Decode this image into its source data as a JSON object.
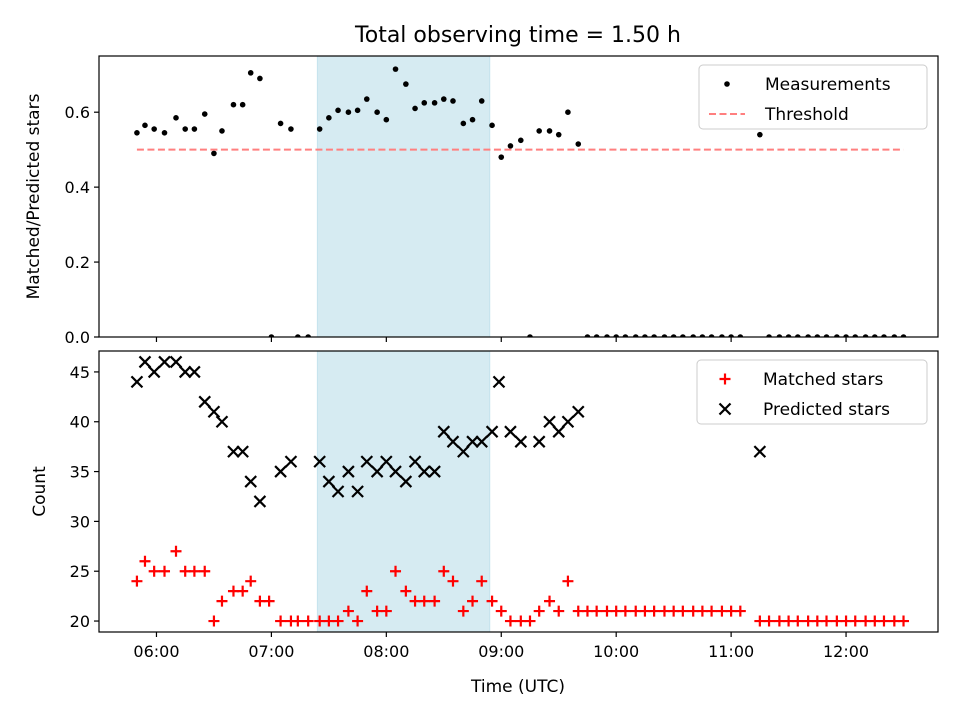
{
  "figure": {
    "title": "Total observing time = 1.50 h",
    "xlabel": "Time (UTC)",
    "x_ticks": [
      "06:00",
      "07:00",
      "08:00",
      "09:00",
      "10:00",
      "11:00",
      "12:00"
    ],
    "x_tick_hours": [
      6,
      7,
      8,
      9,
      10,
      11,
      12
    ],
    "x_range": [
      5.5,
      12.8
    ],
    "highlight_band": {
      "start": 7.4,
      "end": 8.9,
      "color": "#add8e6"
    }
  },
  "chart_data": [
    {
      "type": "scatter",
      "panel": "ratio",
      "ylabel": "Matched/Predicted stars",
      "ylim": [
        0,
        0.75
      ],
      "y_ticks": [
        0.0,
        0.2,
        0.4,
        0.6
      ],
      "y_tick_labels": [
        "0.0",
        "0.2",
        "0.4",
        "0.6"
      ],
      "legend": {
        "placement": "upper-right",
        "entries": [
          "Measurements",
          "Threshold"
        ]
      },
      "series": [
        {
          "name": "Measurements",
          "marker": "dot",
          "color": "#000000",
          "points": [
            [
              5.83,
              0.545
            ],
            [
              5.9,
              0.565
            ],
            [
              5.98,
              0.555
            ],
            [
              6.07,
              0.545
            ],
            [
              6.17,
              0.585
            ],
            [
              6.25,
              0.555
            ],
            [
              6.33,
              0.555
            ],
            [
              6.42,
              0.595
            ],
            [
              6.5,
              0.49
            ],
            [
              6.57,
              0.55
            ],
            [
              6.67,
              0.62
            ],
            [
              6.75,
              0.62
            ],
            [
              6.82,
              0.705
            ],
            [
              6.9,
              0.69
            ],
            [
              7.0,
              0.0
            ],
            [
              7.08,
              0.57
            ],
            [
              7.17,
              0.555
            ],
            [
              7.23,
              0.0
            ],
            [
              7.32,
              0.0
            ],
            [
              7.42,
              0.555
            ],
            [
              7.5,
              0.585
            ],
            [
              7.58,
              0.605
            ],
            [
              7.67,
              0.6
            ],
            [
              7.75,
              0.605
            ],
            [
              7.83,
              0.635
            ],
            [
              7.92,
              0.6
            ],
            [
              8.0,
              0.58
            ],
            [
              8.08,
              0.715
            ],
            [
              8.17,
              0.675
            ],
            [
              8.25,
              0.61
            ],
            [
              8.33,
              0.625
            ],
            [
              8.42,
              0.625
            ],
            [
              8.5,
              0.635
            ],
            [
              8.58,
              0.63
            ],
            [
              8.67,
              0.57
            ],
            [
              8.75,
              0.58
            ],
            [
              8.83,
              0.63
            ],
            [
              8.92,
              0.565
            ],
            [
              9.0,
              0.48
            ],
            [
              9.08,
              0.51
            ],
            [
              9.17,
              0.525
            ],
            [
              9.25,
              0.0
            ],
            [
              9.33,
              0.55
            ],
            [
              9.42,
              0.55
            ],
            [
              9.5,
              0.54
            ],
            [
              9.58,
              0.6
            ],
            [
              9.67,
              0.515
            ],
            [
              9.75,
              0.0
            ],
            [
              9.83,
              0.0
            ],
            [
              9.92,
              0.0
            ],
            [
              10.0,
              0.0
            ],
            [
              10.08,
              0.0
            ],
            [
              10.17,
              0.0
            ],
            [
              10.25,
              0.0
            ],
            [
              10.33,
              0.0
            ],
            [
              10.42,
              0.0
            ],
            [
              10.5,
              0.0
            ],
            [
              10.58,
              0.0
            ],
            [
              10.67,
              0.0
            ],
            [
              10.75,
              0.0
            ],
            [
              10.83,
              0.0
            ],
            [
              10.92,
              0.0
            ],
            [
              11.0,
              0.0
            ],
            [
              11.08,
              0.0
            ],
            [
              11.25,
              0.54
            ],
            [
              11.33,
              0.0
            ],
            [
              11.42,
              0.0
            ],
            [
              11.5,
              0.0
            ],
            [
              11.58,
              0.0
            ],
            [
              11.67,
              0.0
            ],
            [
              11.75,
              0.0
            ],
            [
              11.83,
              0.0
            ],
            [
              11.92,
              0.0
            ],
            [
              12.0,
              0.0
            ],
            [
              12.08,
              0.0
            ],
            [
              12.17,
              0.0
            ],
            [
              12.25,
              0.0
            ],
            [
              12.33,
              0.0
            ],
            [
              12.42,
              0.0
            ],
            [
              12.5,
              0.0
            ]
          ]
        },
        {
          "name": "Threshold",
          "type": "line",
          "style": "dashed",
          "color": "#ff7f7f",
          "x": [
            5.83,
            12.5
          ],
          "y": [
            0.5,
            0.5
          ]
        }
      ]
    },
    {
      "type": "scatter",
      "panel": "counts",
      "ylabel": "Count",
      "ylim": [
        18.9,
        47.1
      ],
      "y_ticks": [
        20,
        25,
        30,
        35,
        40,
        45
      ],
      "y_tick_labels": [
        "20",
        "25",
        "30",
        "35",
        "40",
        "45"
      ],
      "legend": {
        "placement": "upper-right",
        "entries": [
          "Matched stars",
          "Predicted stars"
        ]
      },
      "series": [
        {
          "name": "Matched stars",
          "marker": "plus",
          "color": "#ff0000",
          "points": [
            [
              5.83,
              24
            ],
            [
              5.9,
              26
            ],
            [
              5.98,
              25
            ],
            [
              6.07,
              25
            ],
            [
              6.17,
              27
            ],
            [
              6.25,
              25
            ],
            [
              6.33,
              25
            ],
            [
              6.42,
              25
            ],
            [
              6.5,
              20
            ],
            [
              6.57,
              22
            ],
            [
              6.67,
              23
            ],
            [
              6.75,
              23
            ],
            [
              6.82,
              24
            ],
            [
              6.9,
              22
            ],
            [
              6.98,
              22
            ],
            [
              7.08,
              20
            ],
            [
              7.17,
              20
            ],
            [
              7.23,
              20
            ],
            [
              7.32,
              20
            ],
            [
              7.42,
              20
            ],
            [
              7.5,
              20
            ],
            [
              7.58,
              20
            ],
            [
              7.67,
              21
            ],
            [
              7.75,
              20
            ],
            [
              7.83,
              23
            ],
            [
              7.92,
              21
            ],
            [
              8.0,
              21
            ],
            [
              8.08,
              25
            ],
            [
              8.17,
              23
            ],
            [
              8.25,
              22
            ],
            [
              8.33,
              22
            ],
            [
              8.42,
              22
            ],
            [
              8.5,
              25
            ],
            [
              8.58,
              24
            ],
            [
              8.67,
              21
            ],
            [
              8.75,
              22
            ],
            [
              8.83,
              24
            ],
            [
              8.92,
              22
            ],
            [
              9.0,
              21
            ],
            [
              9.08,
              20
            ],
            [
              9.17,
              20
            ],
            [
              9.25,
              20
            ],
            [
              9.33,
              21
            ],
            [
              9.42,
              22
            ],
            [
              9.5,
              21
            ],
            [
              9.58,
              24
            ],
            [
              9.67,
              21
            ],
            [
              9.75,
              21
            ],
            [
              9.83,
              21
            ],
            [
              9.92,
              21
            ],
            [
              10.0,
              21
            ],
            [
              10.08,
              21
            ],
            [
              10.17,
              21
            ],
            [
              10.25,
              21
            ],
            [
              10.33,
              21
            ],
            [
              10.42,
              21
            ],
            [
              10.5,
              21
            ],
            [
              10.58,
              21
            ],
            [
              10.67,
              21
            ],
            [
              10.75,
              21
            ],
            [
              10.83,
              21
            ],
            [
              10.92,
              21
            ],
            [
              11.0,
              21
            ],
            [
              11.08,
              21
            ],
            [
              11.25,
              20
            ],
            [
              11.33,
              20
            ],
            [
              11.42,
              20
            ],
            [
              11.5,
              20
            ],
            [
              11.58,
              20
            ],
            [
              11.67,
              20
            ],
            [
              11.75,
              20
            ],
            [
              11.83,
              20
            ],
            [
              11.92,
              20
            ],
            [
              12.0,
              20
            ],
            [
              12.08,
              20
            ],
            [
              12.17,
              20
            ],
            [
              12.25,
              20
            ],
            [
              12.33,
              20
            ],
            [
              12.42,
              20
            ],
            [
              12.5,
              20
            ]
          ]
        },
        {
          "name": "Predicted stars",
          "marker": "x",
          "color": "#000000",
          "points": [
            [
              5.83,
              44
            ],
            [
              5.9,
              46
            ],
            [
              5.98,
              45
            ],
            [
              6.07,
              46
            ],
            [
              6.17,
              46
            ],
            [
              6.25,
              45
            ],
            [
              6.33,
              45
            ],
            [
              6.42,
              42
            ],
            [
              6.5,
              41
            ],
            [
              6.57,
              40
            ],
            [
              6.67,
              37
            ],
            [
              6.75,
              37
            ],
            [
              6.82,
              34
            ],
            [
              6.9,
              32
            ],
            [
              7.08,
              35
            ],
            [
              7.17,
              36
            ],
            [
              7.42,
              36
            ],
            [
              7.5,
              34
            ],
            [
              7.58,
              33
            ],
            [
              7.67,
              35
            ],
            [
              7.75,
              33
            ],
            [
              7.83,
              36
            ],
            [
              7.92,
              35
            ],
            [
              8.0,
              36
            ],
            [
              8.08,
              35
            ],
            [
              8.17,
              34
            ],
            [
              8.25,
              36
            ],
            [
              8.33,
              35
            ],
            [
              8.42,
              35
            ],
            [
              8.5,
              39
            ],
            [
              8.58,
              38
            ],
            [
              8.67,
              37
            ],
            [
              8.75,
              38
            ],
            [
              8.83,
              38
            ],
            [
              8.92,
              39
            ],
            [
              8.98,
              44
            ],
            [
              9.08,
              39
            ],
            [
              9.17,
              38
            ],
            [
              9.33,
              38
            ],
            [
              9.42,
              40
            ],
            [
              9.5,
              39
            ],
            [
              9.58,
              40
            ],
            [
              9.67,
              41
            ],
            [
              11.25,
              37
            ]
          ]
        }
      ]
    }
  ]
}
